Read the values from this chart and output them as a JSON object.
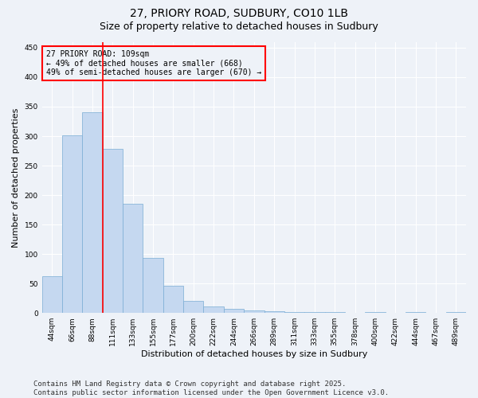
{
  "title": "27, PRIORY ROAD, SUDBURY, CO10 1LB",
  "subtitle": "Size of property relative to detached houses in Sudbury",
  "xlabel": "Distribution of detached houses by size in Sudbury",
  "ylabel": "Number of detached properties",
  "categories": [
    "44sqm",
    "66sqm",
    "88sqm",
    "111sqm",
    "133sqm",
    "155sqm",
    "177sqm",
    "200sqm",
    "222sqm",
    "244sqm",
    "266sqm",
    "289sqm",
    "311sqm",
    "333sqm",
    "355sqm",
    "378sqm",
    "400sqm",
    "422sqm",
    "444sqm",
    "467sqm",
    "489sqm"
  ],
  "values": [
    63,
    302,
    340,
    278,
    185,
    93,
    46,
    21,
    11,
    7,
    5,
    3,
    2,
    1,
    1,
    0,
    1,
    0,
    1,
    0,
    1
  ],
  "bar_color": "#c5d8f0",
  "bar_edge_color": "#7aadd4",
  "red_line_index": 2.5,
  "red_line_label_title": "27 PRIORY ROAD: 109sqm",
  "red_line_label_line1": "← 49% of detached houses are smaller (668)",
  "red_line_label_line2": "49% of semi-detached houses are larger (670) →",
  "ylim": [
    0,
    460
  ],
  "yticks": [
    0,
    50,
    100,
    150,
    200,
    250,
    300,
    350,
    400,
    450
  ],
  "bg_color": "#eef2f8",
  "grid_color": "#ffffff",
  "footer": "Contains HM Land Registry data © Crown copyright and database right 2025.\nContains public sector information licensed under the Open Government Licence v3.0.",
  "title_fontsize": 10,
  "subtitle_fontsize": 9,
  "axis_label_fontsize": 8,
  "tick_fontsize": 6.5,
  "annotation_fontsize": 7,
  "footer_fontsize": 6.5
}
